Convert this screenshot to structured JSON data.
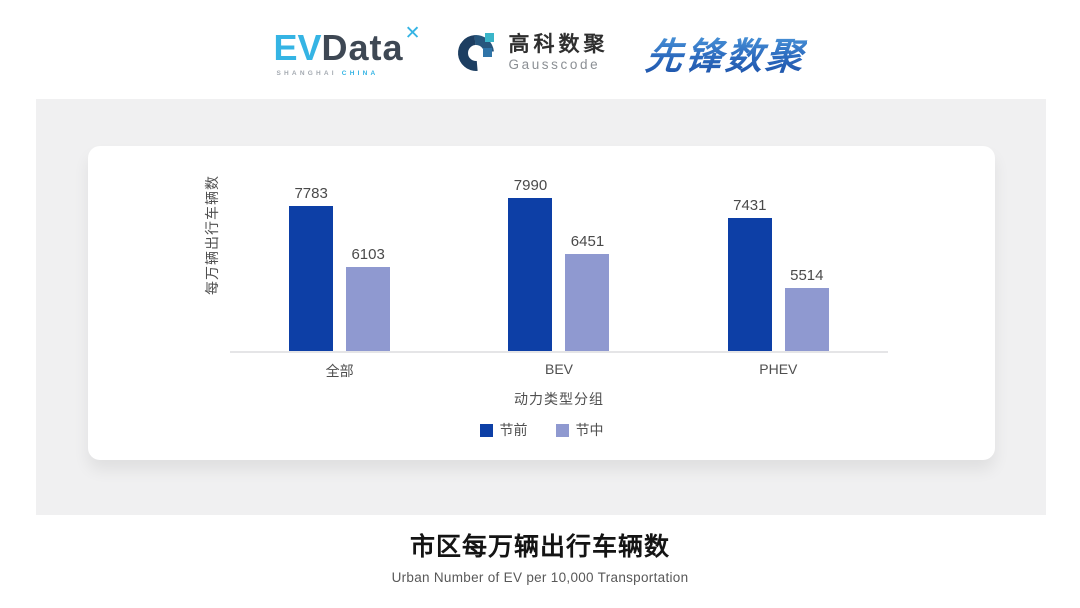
{
  "header": {
    "logos": {
      "evdata": {
        "ev": "EV",
        "data": "Data",
        "mark_glyph": "✕",
        "mark_icon": "x-star-icon",
        "sub_left": "SHANGHAI",
        "sub_right": "CHINA"
      },
      "gausscode": {
        "mark_icon": "g-ring-icon",
        "cn": "高科数聚",
        "en": "Gausscode"
      },
      "xianfeng": {
        "text": "先锋数聚"
      }
    }
  },
  "chart_data": {
    "type": "bar",
    "title": "市区每万辆出行车辆数",
    "subtitle": "Urban Number of EV per 10,000 Transportation",
    "categories": [
      "全部",
      "BEV",
      "PHEV"
    ],
    "series": [
      {
        "name": "节前",
        "color": "#0d3fa6",
        "values": [
          7783,
          7990,
          7431
        ]
      },
      {
        "name": "节中",
        "color": "#8f99d0",
        "values": [
          6103,
          6451,
          5514
        ]
      }
    ],
    "xlabel": "动力类型分组",
    "ylabel": "每万辆出行车辆数",
    "ylim": [
      3800,
      8400
    ],
    "grid": false,
    "legend_position": "bottom",
    "value_labels": true,
    "value_label_color": "#4a4a4a",
    "axis_line_color": "#e5e5e7"
  },
  "footer": {
    "title": "市区每万辆出行车辆数",
    "subtitle": "Urban Number of EV per 10,000 Transportation"
  }
}
